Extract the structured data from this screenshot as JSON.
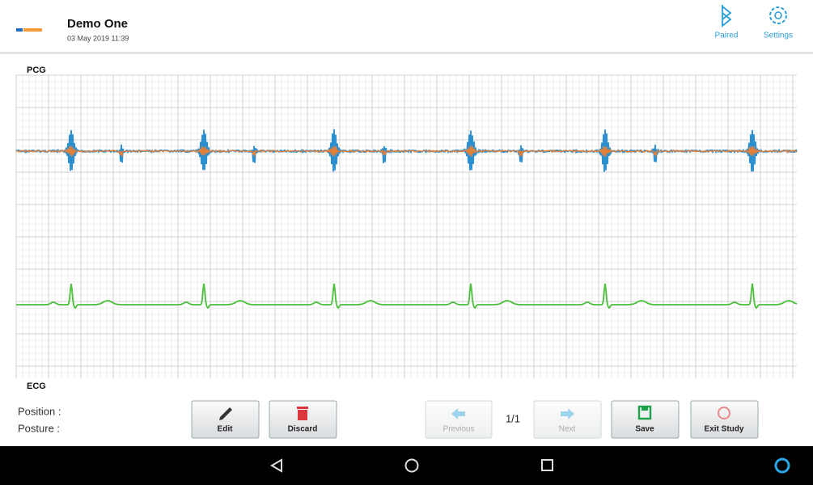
{
  "header": {
    "title": "Demo One",
    "datetime": "03 May 2019 11:39",
    "bluetooth": "Paired",
    "settings": "Settings"
  },
  "chart": {
    "top_label": "PCG",
    "bottom_label": "ECG"
  },
  "footer": {
    "position": "Position :",
    "posture": "Posture :",
    "buttons": {
      "edit": "Edit",
      "discard": "Discard",
      "previous": "Previous",
      "page": "1/1",
      "next": "Next",
      "save": "Save",
      "exit": "Exit Study"
    }
  }
}
